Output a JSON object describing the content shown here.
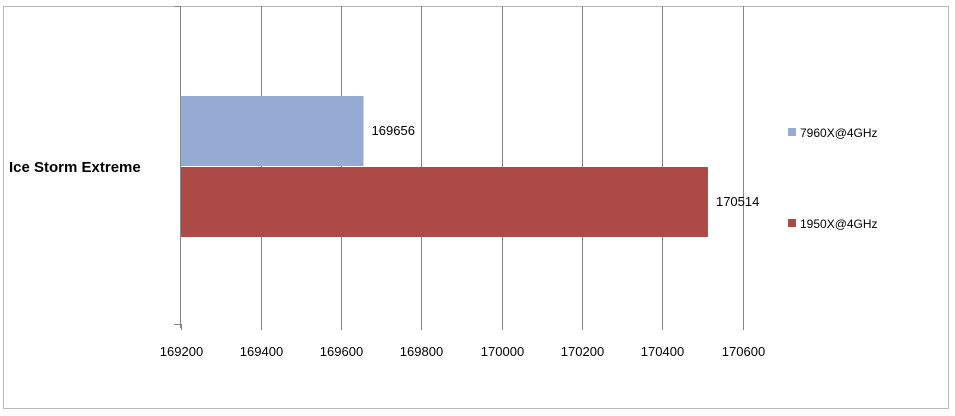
{
  "chart_data": {
    "type": "bar",
    "orientation": "horizontal",
    "categories": [
      "Ice Storm Extreme"
    ],
    "series": [
      {
        "name": "7960X@4GHz",
        "values": [
          169656
        ],
        "color": "#95abd3"
      },
      {
        "name": "1950X@4GHz",
        "values": [
          170514
        ],
        "color": "#ab4a47"
      }
    ],
    "xlim": [
      169200,
      170600
    ],
    "xticks": [
      169200,
      169400,
      169600,
      169800,
      170000,
      170200,
      170400,
      170600
    ],
    "grid": "vertical",
    "legend": "right"
  }
}
